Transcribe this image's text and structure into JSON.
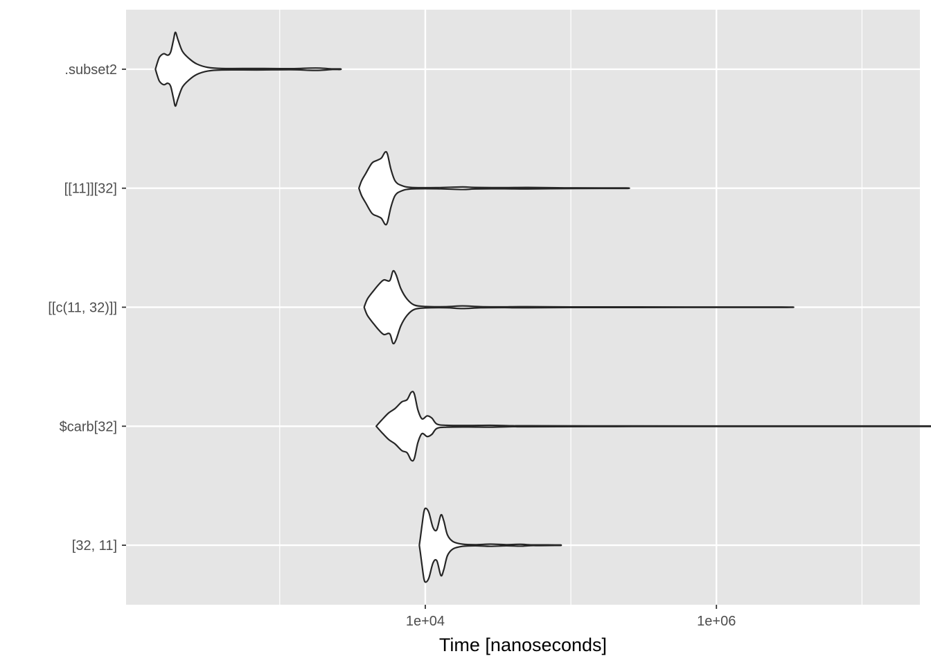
{
  "chart_data": {
    "type": "violin",
    "orientation": "horizontal",
    "xlabel": "Time [nanoseconds]",
    "ylabel": "",
    "x_scale": "log10",
    "xlim": [
      88,
      25000000
    ],
    "x_ticks": [
      {
        "value": 10000,
        "label": "1e+04"
      },
      {
        "value": 1000000,
        "label": "1e+06"
      }
    ],
    "x_minor_ticks": [
      1000,
      100000,
      10000000
    ],
    "grid": true,
    "legend": "none",
    "colors": {
      "panel": "#e5e5e5",
      "grid": "#ffffff",
      "violin_fill": "#ffffff",
      "violin_stroke": "#262626",
      "tick_text": "#4d4d4d"
    },
    "categories": [
      ".subset2",
      "[[11]][32]",
      "[[c(11, 32)]]",
      "$carb[32]",
      "[32, 11]"
    ],
    "series": [
      {
        "category": ".subset2",
        "profile": [
          [
            140,
            0.0
          ],
          [
            145,
            0.2
          ],
          [
            150,
            0.34
          ],
          [
            160,
            0.42
          ],
          [
            170,
            0.38
          ],
          [
            178,
            0.46
          ],
          [
            186,
            0.78
          ],
          [
            192,
            1.0
          ],
          [
            200,
            0.8
          ],
          [
            215,
            0.48
          ],
          [
            240,
            0.28
          ],
          [
            270,
            0.14
          ],
          [
            320,
            0.05
          ],
          [
            400,
            0.02
          ],
          [
            700,
            0.02
          ],
          [
            1200,
            0.015
          ],
          [
            1600,
            0.03
          ],
          [
            1900,
            0.03
          ],
          [
            2300,
            0.008
          ],
          [
            2600,
            0.008
          ]
        ]
      },
      {
        "category": "[[11]][32]",
        "profile": [
          [
            3500,
            0.0
          ],
          [
            3650,
            0.2
          ],
          [
            3900,
            0.4
          ],
          [
            4300,
            0.68
          ],
          [
            4700,
            0.76
          ],
          [
            5000,
            0.82
          ],
          [
            5300,
            0.98
          ],
          [
            5500,
            0.92
          ],
          [
            5800,
            0.52
          ],
          [
            6200,
            0.2
          ],
          [
            6800,
            0.08
          ],
          [
            8000,
            0.02
          ],
          [
            12000,
            0.015
          ],
          [
            18000,
            0.035
          ],
          [
            22000,
            0.02
          ],
          [
            35000,
            0.015
          ],
          [
            50000,
            0.02
          ],
          [
            90000,
            0.01
          ],
          [
            160000,
            0.006
          ],
          [
            240000,
            0.006
          ]
        ]
      },
      {
        "category": "[[c(11, 32)]]",
        "profile": [
          [
            3800,
            0.0
          ],
          [
            4000,
            0.22
          ],
          [
            4400,
            0.44
          ],
          [
            4800,
            0.62
          ],
          [
            5200,
            0.74
          ],
          [
            5700,
            0.72
          ],
          [
            6000,
            0.98
          ],
          [
            6300,
            0.88
          ],
          [
            6800,
            0.5
          ],
          [
            7500,
            0.22
          ],
          [
            8400,
            0.06
          ],
          [
            10000,
            0.02
          ],
          [
            14000,
            0.015
          ],
          [
            18000,
            0.035
          ],
          [
            24000,
            0.015
          ],
          [
            35000,
            0.01
          ],
          [
            45000,
            0.015
          ],
          [
            100000,
            0.008
          ],
          [
            600000,
            0.006
          ],
          [
            2800000,
            0.006
          ]
        ]
      },
      {
        "category": "$carb[32]",
        "profile": [
          [
            4600,
            0.0
          ],
          [
            5000,
            0.16
          ],
          [
            5600,
            0.36
          ],
          [
            6200,
            0.48
          ],
          [
            6900,
            0.66
          ],
          [
            7500,
            0.72
          ],
          [
            8000,
            0.92
          ],
          [
            8400,
            0.88
          ],
          [
            8900,
            0.44
          ],
          [
            9500,
            0.2
          ],
          [
            10300,
            0.28
          ],
          [
            11100,
            0.22
          ],
          [
            12000,
            0.06
          ],
          [
            14000,
            0.025
          ],
          [
            20000,
            0.02
          ],
          [
            28000,
            0.025
          ],
          [
            40000,
            0.012
          ],
          [
            50000,
            0.014
          ],
          [
            200000,
            0.008
          ],
          [
            1000000,
            0.006
          ],
          [
            10000000,
            0.006
          ],
          [
            64000000,
            0.006
          ]
        ]
      },
      {
        "category": "[32, 11]",
        "profile": [
          [
            9100,
            0.0
          ],
          [
            9250,
            0.2
          ],
          [
            9500,
            0.55
          ],
          [
            9800,
            0.92
          ],
          [
            10100,
            1.0
          ],
          [
            10600,
            0.88
          ],
          [
            11300,
            0.48
          ],
          [
            12000,
            0.42
          ],
          [
            12800,
            0.82
          ],
          [
            13400,
            0.66
          ],
          [
            14200,
            0.28
          ],
          [
            15500,
            0.1
          ],
          [
            18000,
            0.03
          ],
          [
            22000,
            0.015
          ],
          [
            28000,
            0.03
          ],
          [
            36000,
            0.015
          ],
          [
            45000,
            0.025
          ],
          [
            53000,
            0.01
          ],
          [
            62000,
            0.01
          ],
          [
            78000,
            0.006
          ],
          [
            85000,
            0.006
          ]
        ]
      }
    ]
  }
}
